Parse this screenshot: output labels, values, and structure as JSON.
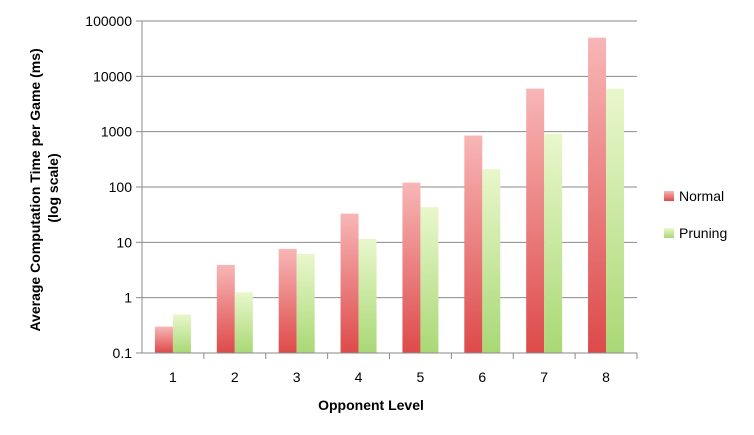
{
  "chart_data": {
    "type": "bar",
    "title": "",
    "xlabel": "Opponent Level",
    "ylabel_line1": "Average Computation Time per Game (ms)",
    "ylabel_line2": "(log scale)",
    "y_scale": "log",
    "ylim": [
      0.1,
      100000
    ],
    "y_ticks": [
      0.1,
      1,
      10,
      100,
      1000,
      10000,
      100000
    ],
    "y_tick_labels": [
      "0.1",
      "1",
      "10",
      "100",
      "1000",
      "10000",
      "100000"
    ],
    "grid": true,
    "legend_position": "right",
    "categories": [
      "1",
      "2",
      "3",
      "4",
      "5",
      "6",
      "7",
      "8"
    ],
    "series": [
      {
        "name": "Normal",
        "color": "#e57373",
        "values": [
          0.3,
          3.9,
          7.6,
          33,
          120,
          850,
          6000,
          50000
        ]
      },
      {
        "name": "Pruning",
        "color": "#b5e08a",
        "values": [
          0.5,
          1.25,
          6.2,
          11.5,
          43,
          210,
          920,
          6000
        ]
      }
    ]
  }
}
